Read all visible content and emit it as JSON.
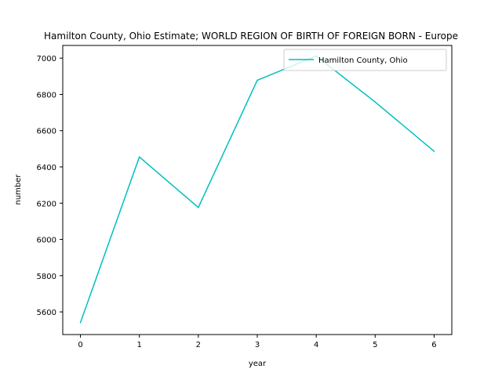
{
  "chart_data": {
    "type": "line",
    "title": "Hamilton County, Ohio Estimate; WORLD REGION OF BIRTH OF FOREIGN BORN - Europe",
    "xlabel": "year",
    "ylabel": "number",
    "x": [
      0,
      1,
      2,
      3,
      4,
      5,
      6
    ],
    "series": [
      {
        "name": "Hamilton County, Ohio",
        "values": [
          5541,
          6455,
          6176,
          6878,
          7012,
          6758,
          6486
        ],
        "color": "#00bfbf"
      }
    ],
    "xlim": [
      -0.3,
      6.3
    ],
    "ylim": [
      5475,
      7070
    ],
    "xticks": [
      0,
      1,
      2,
      3,
      4,
      5,
      6
    ],
    "yticks": [
      5600,
      5800,
      6000,
      6200,
      6400,
      6600,
      6800,
      7000
    ],
    "grid": false,
    "legend_position": "top-right"
  }
}
